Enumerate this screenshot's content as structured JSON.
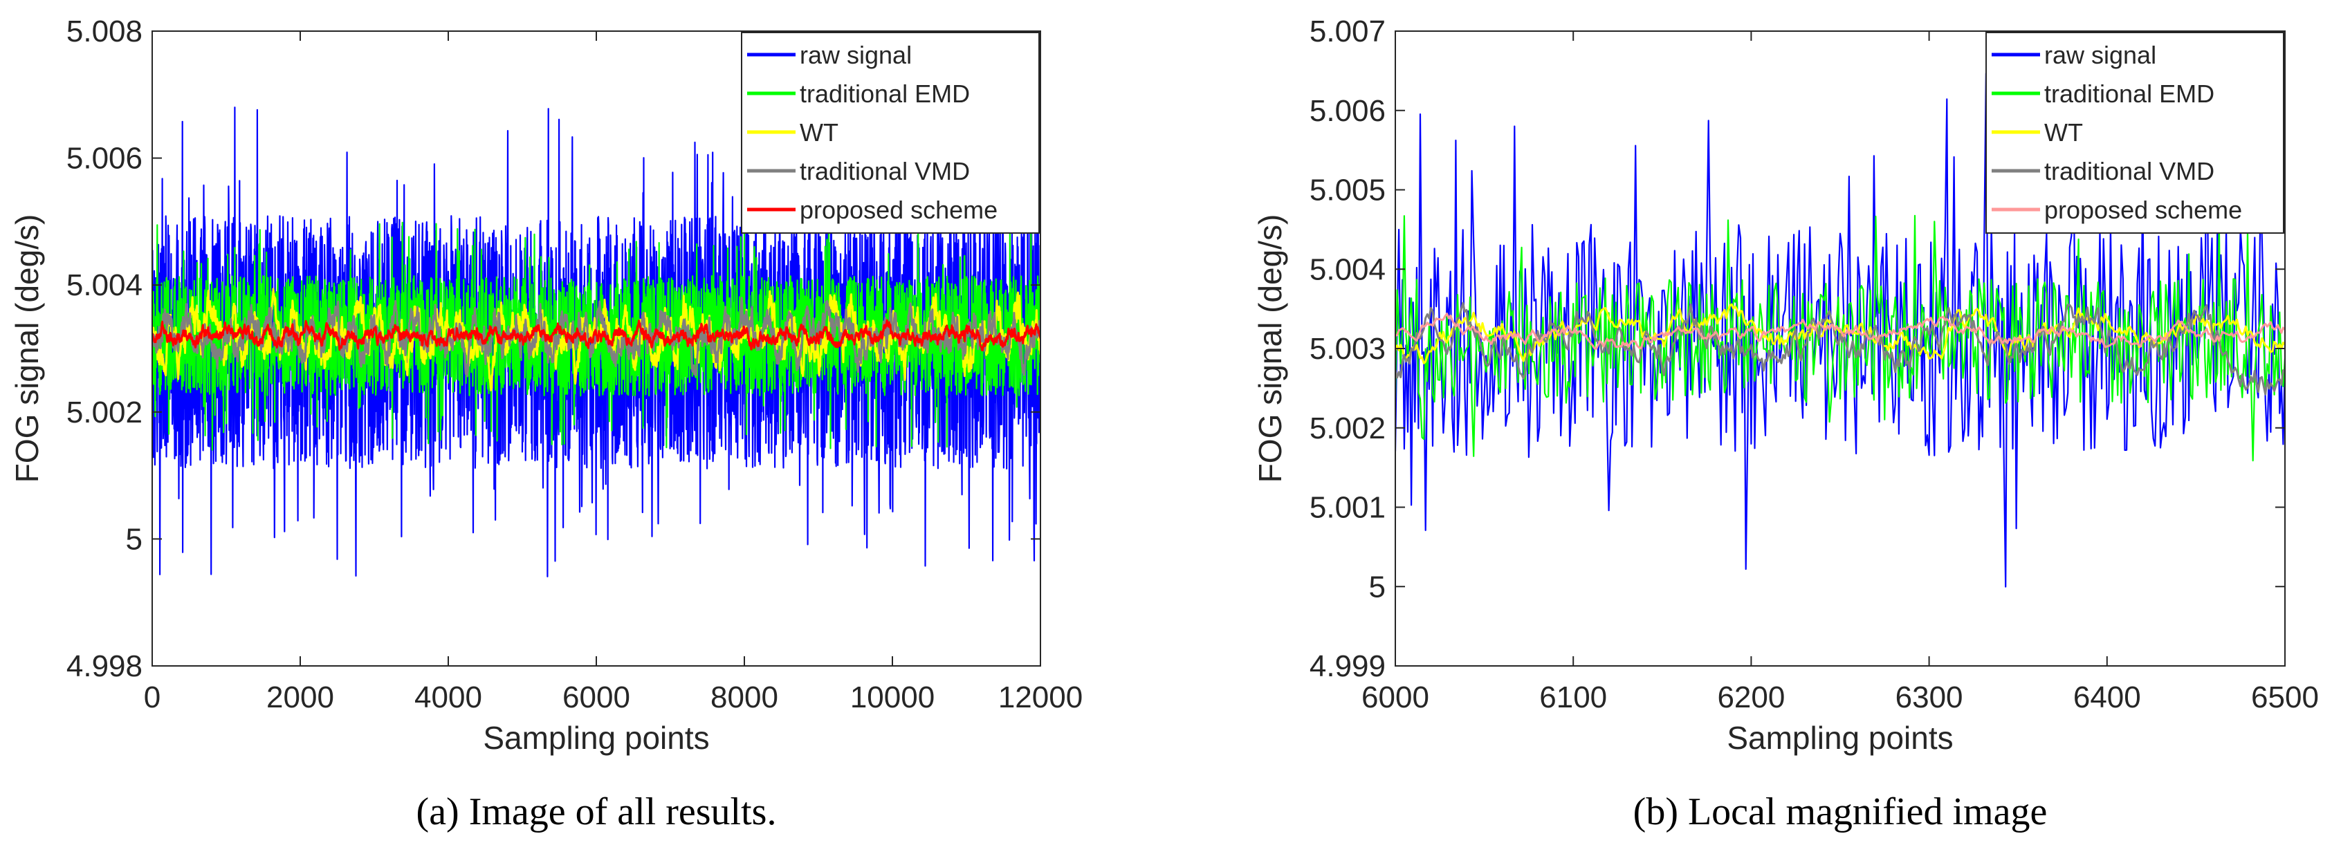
{
  "chart_data": [
    {
      "type": "line",
      "caption": "(a)  Image of all results.",
      "xlabel": "Sampling points",
      "ylabel": "FOG signal (deg/s)",
      "xlim": [
        0,
        12000
      ],
      "ylim": [
        4.998,
        5.008
      ],
      "xticks": [
        0,
        2000,
        4000,
        6000,
        8000,
        10000,
        12000
      ],
      "xtick_labels": [
        "0",
        "2000",
        "4000",
        "6000",
        "8000",
        "10000",
        "12000"
      ],
      "yticks": [
        4.998,
        5.0,
        5.002,
        5.004,
        5.006,
        5.008
      ],
      "ytick_labels": [
        "4.998",
        "5",
        "5.002",
        "5.004",
        "5.006",
        "5.008"
      ],
      "grid": false,
      "legend_position": "top-right",
      "series": [
        {
          "name": "raw signal",
          "color": "#0000ff",
          "center": 5.0031,
          "band_low": 5.0012,
          "band_high": 5.005,
          "min": 4.9994,
          "max": 5.0066
        },
        {
          "name": "traditional EMD",
          "color": "#00ff00",
          "center": 5.0032,
          "band_low": 5.0023,
          "band_high": 5.0041,
          "min": 5.0014,
          "max": 5.0048
        },
        {
          "name": "WT",
          "color": "#ffff00",
          "center": 5.0032,
          "band_low": 5.0026,
          "band_high": 5.0038,
          "min": 5.0022,
          "max": 5.0042
        },
        {
          "name": "traditional VMD",
          "color": "#808080",
          "center": 5.0032,
          "band_low": 5.0027,
          "band_high": 5.0037,
          "min": 5.0024,
          "max": 5.004
        },
        {
          "name": "proposed scheme",
          "color": "#ff0000",
          "center": 5.0032,
          "band_low": 5.003,
          "band_high": 5.0034,
          "min": 5.0027,
          "max": 5.0037
        }
      ]
    },
    {
      "type": "line",
      "caption": "(b)  Local magnified image",
      "xlabel": "Sampling points",
      "ylabel": "FOG signal (deg/s)",
      "xlim": [
        6000,
        6500
      ],
      "ylim": [
        4.999,
        5.007
      ],
      "xticks": [
        6000,
        6100,
        6200,
        6300,
        6400,
        6500
      ],
      "xtick_labels": [
        "6000",
        "6100",
        "6200",
        "6300",
        "6400",
        "6500"
      ],
      "yticks": [
        4.999,
        5.0,
        5.001,
        5.002,
        5.003,
        5.004,
        5.005,
        5.006,
        5.007
      ],
      "ytick_labels": [
        "4.999",
        "5",
        "5.001",
        "5.002",
        "5.003",
        "5.004",
        "5.005",
        "5.006",
        "5.007"
      ],
      "grid": false,
      "legend_position": "top-right",
      "series": [
        {
          "name": "raw signal",
          "color": "#0000ff",
          "center": 5.0031,
          "band_low": 5.0018,
          "band_high": 5.0046,
          "min": 4.9997,
          "max": 5.0061
        },
        {
          "name": "traditional EMD",
          "color": "#00ff00",
          "center": 5.0031,
          "band_low": 5.0024,
          "band_high": 5.0039,
          "min": 5.0019,
          "max": 5.0047
        },
        {
          "name": "WT",
          "color": "#ffff00",
          "center": 5.0032,
          "band_low": 5.0029,
          "band_high": 5.0036,
          "min": 5.0027,
          "max": 5.0038
        },
        {
          "name": "traditional VMD",
          "color": "#808080",
          "center": 5.0031,
          "band_low": 5.0026,
          "band_high": 5.0037,
          "min": 5.0022,
          "max": 5.004
        },
        {
          "name": "proposed scheme",
          "color": "#ff9999",
          "center": 5.0032,
          "band_low": 5.003,
          "band_high": 5.0034,
          "min": 5.0029,
          "max": 5.0035
        }
      ]
    }
  ]
}
